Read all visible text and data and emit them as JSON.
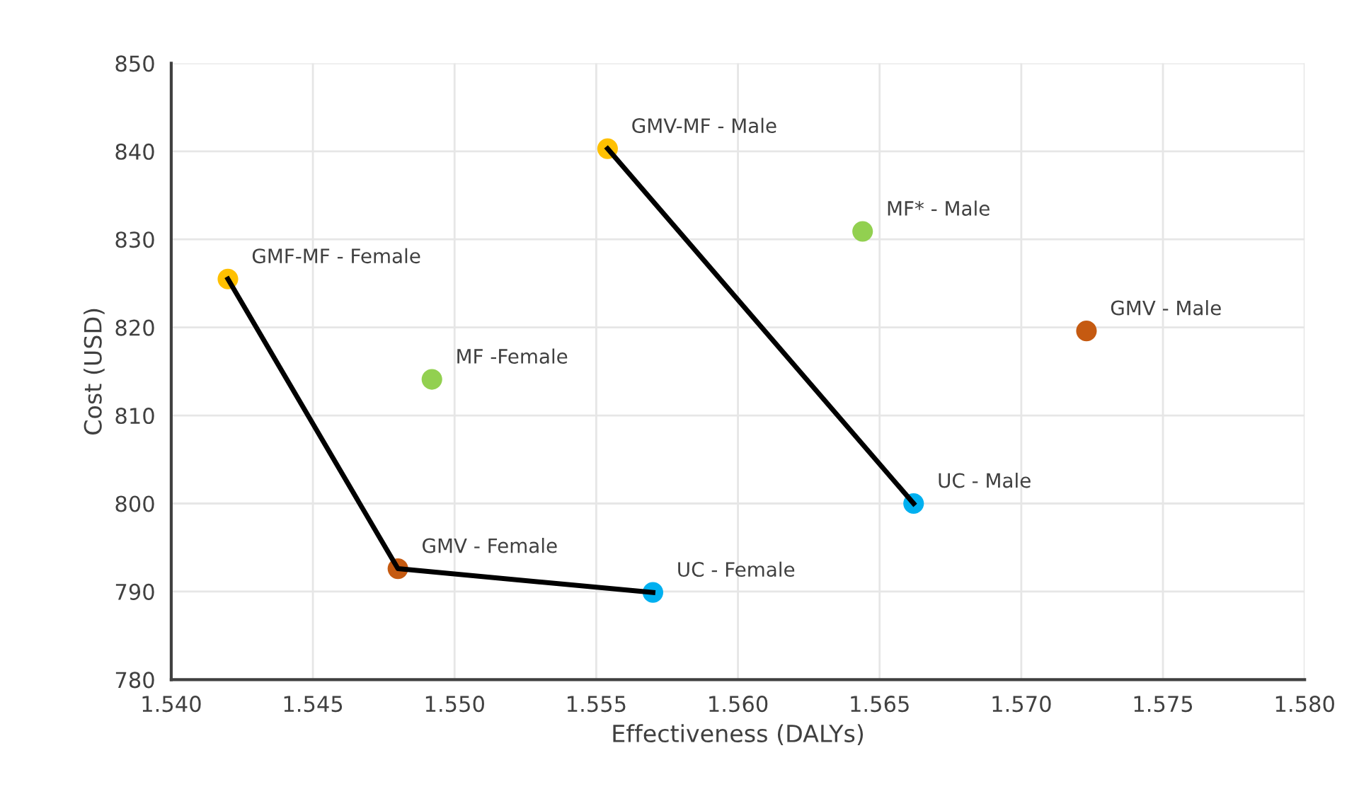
{
  "chart_data": {
    "type": "scatter",
    "xlabel": "Effectiveness (DALYs)",
    "ylabel": "Cost (USD)",
    "xlim": [
      1.54,
      1.58
    ],
    "xticks": [
      {
        "value": 1.54,
        "label": "1.540"
      },
      {
        "value": 1.545,
        "label": "1.545"
      },
      {
        "value": 1.55,
        "label": "1.550"
      },
      {
        "value": 1.555,
        "label": "1.555"
      },
      {
        "value": 1.56,
        "label": "1.560"
      },
      {
        "value": 1.565,
        "label": "1.565"
      },
      {
        "value": 1.57,
        "label": "1.570"
      },
      {
        "value": 1.575,
        "label": "1.575"
      },
      {
        "value": 1.58,
        "label": "1.580"
      }
    ],
    "ylim": [
      780,
      850
    ],
    "yticks": [
      780,
      790,
      800,
      810,
      820,
      830,
      840,
      850
    ],
    "grid": true,
    "legend": false,
    "marker": "circle",
    "series": [
      {
        "type": "line",
        "color": "#000000",
        "x": [
          1.542,
          1.548,
          1.557
        ],
        "values": [
          825.5,
          792.6,
          789.9
        ],
        "marker": "none",
        "line_style": "solid"
      },
      {
        "type": "line",
        "color": "#000000",
        "x": [
          1.5554,
          1.5662
        ],
        "values": [
          840.3,
          800.0
        ],
        "marker": "none",
        "line_style": "solid"
      },
      {
        "x": [
          1.542,
          1.548,
          1.557,
          1.5492,
          1.5554,
          1.5644,
          1.5662,
          1.5723
        ],
        "values": [
          825.5,
          792.6,
          789.9,
          814.1,
          840.3,
          830.9,
          800.0,
          819.6
        ],
        "colors": [
          "#ffc000",
          "#c55a11",
          "#00b0f0",
          "#92d050",
          "#ffc000",
          "#92d050",
          "#00b0f0",
          "#c55a11"
        ],
        "value_labels": [
          "GMF-MF - Female",
          "GMV - Female",
          "UC - Female",
          "MF -Female",
          "GMV-MF - Male",
          "MF* - Male",
          "UC - Male",
          "GMV - Male"
        ]
      }
    ]
  }
}
